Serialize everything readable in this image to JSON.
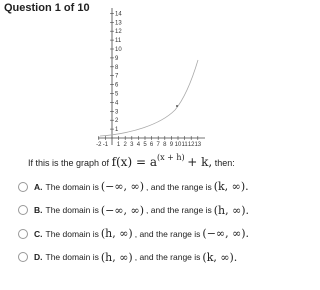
{
  "header": {
    "title": "Question 1 of 10"
  },
  "graph": {
    "x_ticks": [
      -2,
      -1,
      1,
      2,
      3,
      4,
      5,
      6,
      7,
      8,
      9,
      10,
      11,
      12,
      13
    ],
    "y_ticks": [
      1,
      2,
      3,
      4,
      5,
      6,
      7,
      8,
      9,
      10,
      11,
      12,
      13,
      14
    ]
  },
  "question": {
    "prefix": "If this is the graph of",
    "formula": "f(x) = a",
    "exponent": "(x + h)",
    "suffix": "+ k,",
    "tail": "then:"
  },
  "options": [
    {
      "letter": "A.",
      "text1": "The domain is",
      "domain": "(−∞, ∞)",
      "text2": ", and the range is",
      "range": "(k, ∞)."
    },
    {
      "letter": "B.",
      "text1": "The domain is",
      "domain": "(−∞, ∞)",
      "text2": ", and the range is",
      "range": "(h, ∞)."
    },
    {
      "letter": "C.",
      "text1": "The domain is",
      "domain": "(h, ∞)",
      "text2": ", and the range is",
      "range": "(−∞, ∞)."
    },
    {
      "letter": "D.",
      "text1": "The domain is",
      "domain": "(h, ∞)",
      "text2": ", and the range is",
      "range": "(k, ∞)."
    }
  ]
}
